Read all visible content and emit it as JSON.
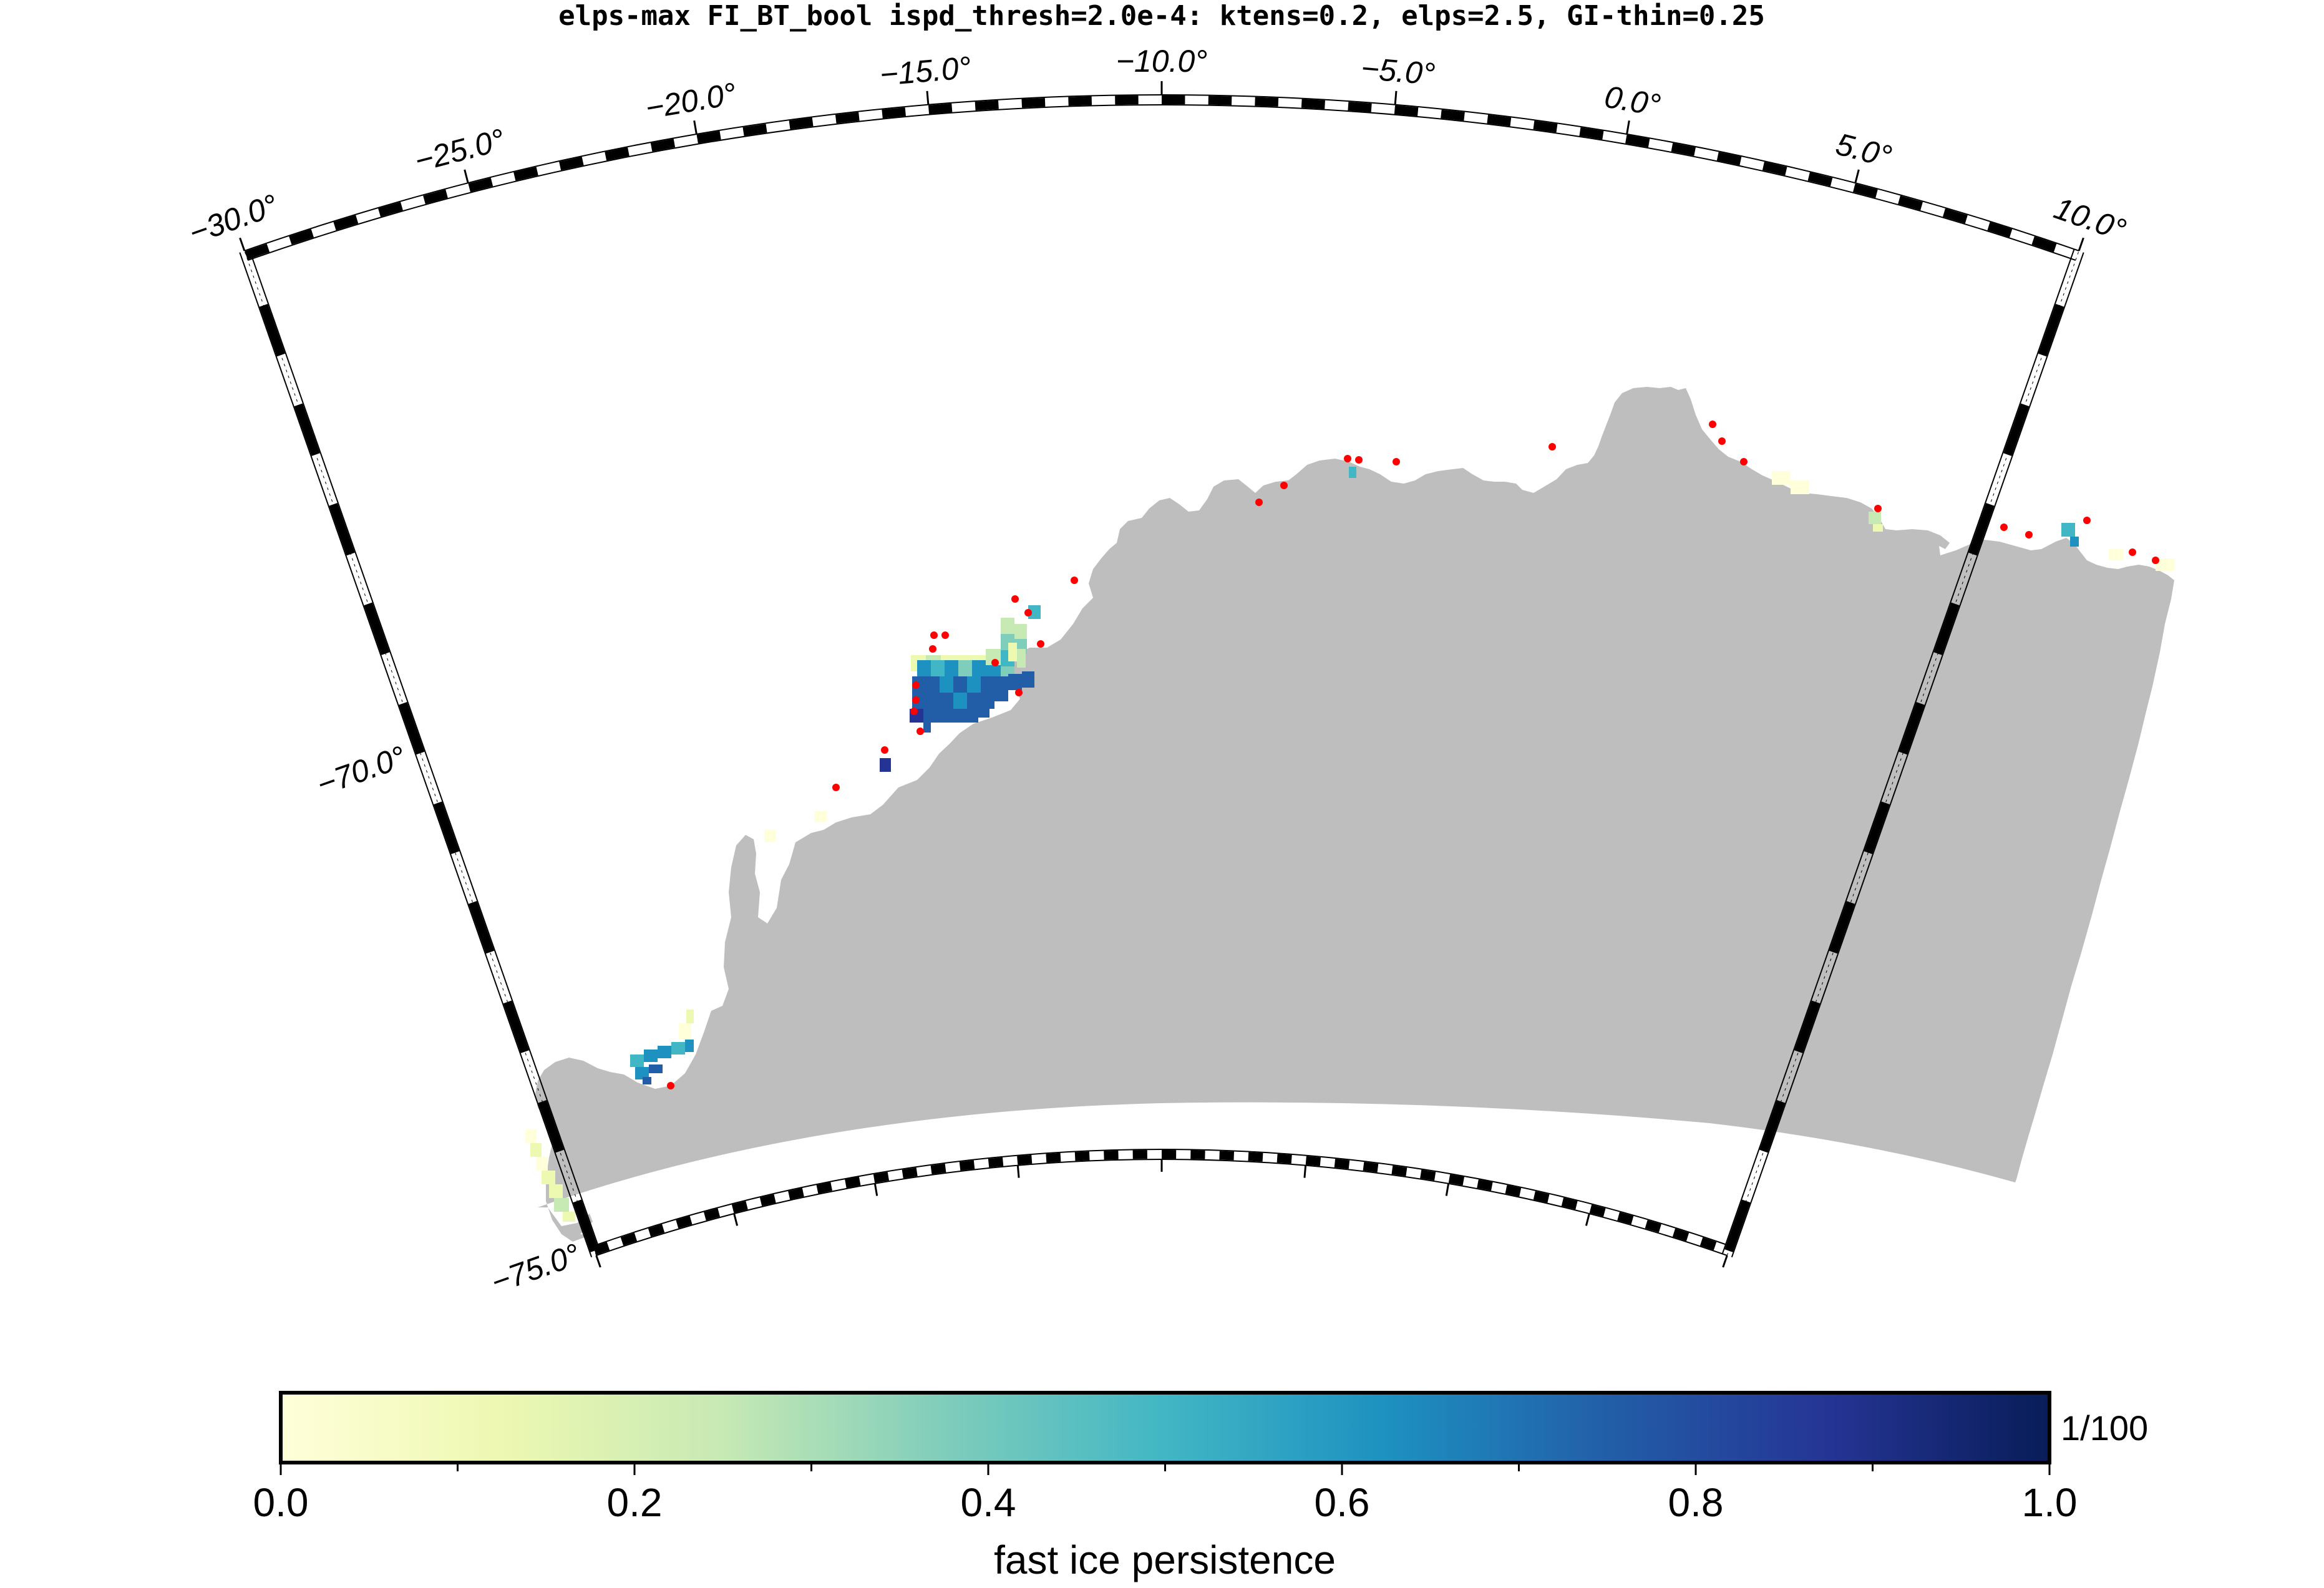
{
  "title": "elps-max FI_BT_bool ispd_thresh=2.0e-4: ktens=0.2, elps=2.5, GI-thin=0.25",
  "map": {
    "longitude_labels": [
      {
        "value": -30,
        "text": "−30.0°"
      },
      {
        "value": -25,
        "text": "−25.0°"
      },
      {
        "value": -20,
        "text": "−20.0°"
      },
      {
        "value": -15,
        "text": "−15.0°"
      },
      {
        "value": -10,
        "text": "−10.0°"
      },
      {
        "value": -5,
        "text": "−5.0°"
      },
      {
        "value": 0,
        "text": "0.0°"
      },
      {
        "value": 5,
        "text": "5.0°"
      },
      {
        "value": 10,
        "text": "10.0°"
      }
    ],
    "latitude_labels": [
      {
        "value": -70,
        "text": "−70.0°"
      },
      {
        "value": -75,
        "text": "−75.0°"
      }
    ],
    "land_color": "#bebebe",
    "marker_color": "#ff0000",
    "marker_icon": "red-dot"
  },
  "colorbar": {
    "ticks": [
      "0.0",
      "0.2",
      "0.4",
      "0.6",
      "0.8",
      "1.0"
    ],
    "scale_label": "1/100",
    "label": "fast ice persistence",
    "colormap": "YlGnBu",
    "colors": [
      "#ffffd9",
      "#edf8b1",
      "#c7e9b4",
      "#7fcdbb",
      "#41b6c4",
      "#1d91c0",
      "#225ea8",
      "#253494",
      "#081d58"
    ]
  }
}
